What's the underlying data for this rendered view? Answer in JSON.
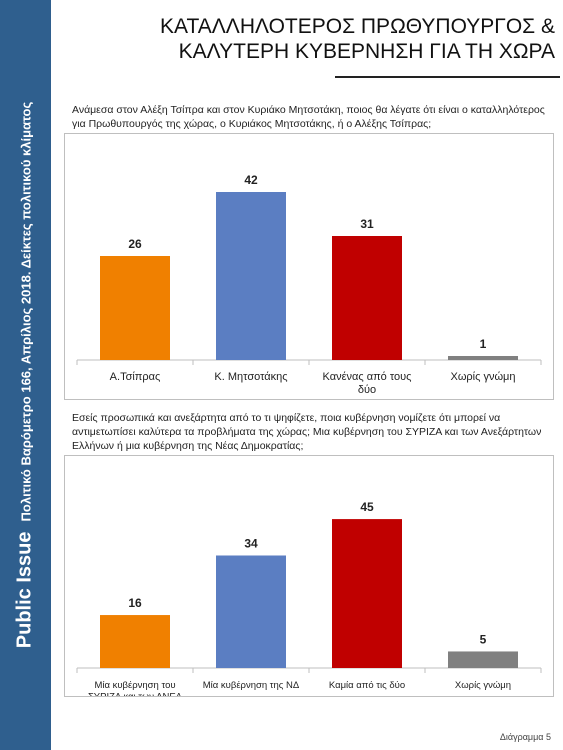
{
  "sidebar": {
    "brand": "Public Issue",
    "subtitle": "Πολιτικό Βαρόμετρο 166, Απρίλιος 2018. Δείκτες πολιτικού κλίματος"
  },
  "header": {
    "title_line1": "ΚΑΤΑΛΛΗΛΟΤΕΡΟΣ ΠΡΩΘΥΠΟΥΡΓΟΣ &",
    "title_line2": "ΚΑΛΥΤΕΡΗ ΚΥΒΕΡΝΗΣΗ ΓΙΑ ΤΗ ΧΩΡΑ"
  },
  "questions": {
    "q1": "Ανάμεσα στον Αλέξη Τσίπρα και στον Κυριάκο Μητσοτάκη, ποιος θα λέγατε ότι είναι ο καταλληλότερος για Πρωθυπουργός της χώρας, ο Κυριάκος Μητσοτάκης, ή ο Αλέξης Τσίπρας;",
    "q2": "Εσείς προσωπικά και ανεξάρτητα από το τι ψηφίζετε, ποια κυβέρνηση νομίζετε ότι μπορεί να αντιμετωπίσει καλύτερα τα προβλήματα της χώρας; Μια κυβέρνηση του ΣΥΡΙΖΑ και των Ανεξάρτητων Ελλήνων ή μια κυβέρνηση της Νέας Δημοκρατίας;"
  },
  "footer": {
    "label": "Διάγραμμα 5"
  },
  "colors": [
    "#f08000",
    "#5b7ec2",
    "#c00000",
    "#808080"
  ],
  "chart_data": [
    {
      "type": "bar",
      "categories": [
        "Α.Τσίπρας",
        "Κ. Μητσοτάκης",
        "Κανένας από τους δύο",
        "Χωρίς γνώμη"
      ],
      "values": [
        26,
        42,
        31,
        1
      ],
      "ylim": [
        0,
        50
      ],
      "grid": false,
      "legend": "none"
    },
    {
      "type": "bar",
      "categories": [
        "Μία κυβέρνηση του ΣΥΡΙΖΑ και των ΑΝΕΛ",
        "Μία κυβέρνηση της ΝΔ",
        "Καμία από τις δύο",
        "Χωρίς γνώμη"
      ],
      "values": [
        16,
        34,
        45,
        5
      ],
      "ylim": [
        0,
        55
      ],
      "grid": false,
      "legend": "none"
    }
  ]
}
